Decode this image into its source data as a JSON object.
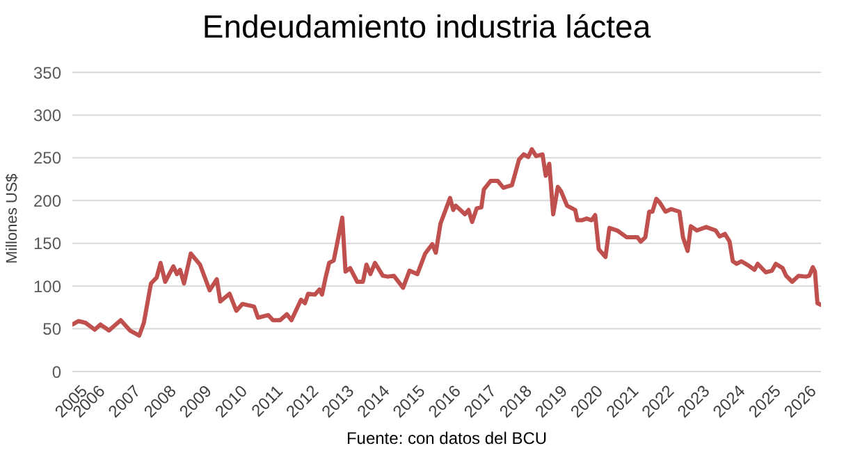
{
  "chart_data": {
    "type": "line",
    "title": "Endeudamiento industria láctea",
    "ylabel": "Millones US$",
    "annotations": [
      "Fuente: con datos del BCU"
    ],
    "x": [
      2005.5,
      2005.67,
      2005.87,
      2006.13,
      2006.29,
      2006.53,
      2006.86,
      2007.12,
      2007.38,
      2007.51,
      2007.71,
      2007.87,
      2007.98,
      2008.11,
      2008.34,
      2008.44,
      2008.53,
      2008.64,
      2008.83,
      2009.09,
      2009.36,
      2009.56,
      2009.66,
      2009.92,
      2010.11,
      2010.28,
      2010.61,
      2010.72,
      2011.01,
      2011.14,
      2011.34,
      2011.53,
      2011.66,
      2011.93,
      2012.04,
      2012.13,
      2012.32,
      2012.45,
      2012.52,
      2012.61,
      2012.72,
      2012.85,
      2013.09,
      2013.18,
      2013.31,
      2013.51,
      2013.67,
      2013.77,
      2013.88,
      2014.01,
      2014.23,
      2014.37,
      2014.54,
      2014.8,
      2014.98,
      2015.2,
      2015.42,
      2015.62,
      2015.72,
      2015.85,
      2016.12,
      2016.21,
      2016.28,
      2016.54,
      2016.64,
      2016.74,
      2016.87,
      2017.0,
      2017.07,
      2017.26,
      2017.46,
      2017.62,
      2017.86,
      2018.06,
      2018.19,
      2018.32,
      2018.42,
      2018.54,
      2018.72,
      2018.81,
      2018.91,
      2019.02,
      2019.15,
      2019.24,
      2019.41,
      2019.64,
      2019.7,
      2019.83,
      2019.96,
      2020.1,
      2020.2,
      2020.3,
      2020.49,
      2020.6,
      2020.82,
      2021.09,
      2021.39,
      2021.48,
      2021.61,
      2021.72,
      2021.81,
      2021.92,
      2022.01,
      2022.18,
      2022.34,
      2022.57,
      2022.67,
      2022.8,
      2022.89,
      2023.06,
      2023.32,
      2023.59,
      2023.7,
      2023.85,
      2023.98,
      2024.07,
      2024.18,
      2024.31,
      2024.51,
      2024.68,
      2024.77,
      2025.0,
      2025.17,
      2025.28,
      2025.47,
      2025.57,
      2025.74,
      2025.92,
      2026.13,
      2026.22,
      2026.32,
      2026.38,
      2026.45,
      2026.55
    ],
    "series": [
      {
        "color": "#c0504d",
        "values": [
          55,
          59,
          57,
          49,
          55,
          48,
          60,
          48,
          42,
          57,
          103,
          110,
          127,
          105,
          123,
          114,
          119,
          103,
          138,
          125,
          95,
          108,
          82,
          91,
          71,
          79,
          76,
          63,
          66,
          60,
          60,
          67,
          60,
          84,
          80,
          91,
          90,
          96,
          90,
          108,
          127,
          130,
          180,
          117,
          121,
          105,
          105,
          125,
          114,
          127,
          112,
          111,
          112,
          98,
          118,
          114,
          138,
          149,
          139,
          173,
          203,
          189,
          194,
          184,
          189,
          175,
          191,
          192,
          213,
          223,
          223,
          215,
          218,
          248,
          254,
          251,
          260,
          252,
          254,
          229,
          243,
          184,
          216,
          211,
          194,
          189,
          177,
          177,
          179,
          177,
          183,
          143,
          134,
          168,
          165,
          157,
          157,
          152,
          157,
          187,
          187,
          202,
          198,
          187,
          190,
          187,
          157,
          141,
          170,
          165,
          169,
          165,
          158,
          161,
          152,
          129,
          126,
          129,
          124,
          119,
          126,
          116,
          118,
          126,
          121,
          112,
          105,
          112,
          111,
          112,
          122,
          117,
          80,
          78
        ]
      }
    ],
    "xlim": [
      2005.5,
      2026.55
    ],
    "xticks": [
      {
        "value": 2005.5,
        "label": "2005"
      },
      2006,
      2007,
      2008,
      2009,
      2010,
      2011,
      2012,
      2013,
      2014,
      2015,
      2016,
      2017,
      2018,
      2019,
      2020,
      2021,
      2022,
      2023,
      2024,
      2025,
      2026
    ],
    "ylim": [
      0,
      350
    ],
    "yticks": [
      0,
      50,
      100,
      150,
      200,
      250,
      300,
      350
    ],
    "grid": "y",
    "legend": false,
    "marker": "none",
    "line_style": "solid"
  }
}
